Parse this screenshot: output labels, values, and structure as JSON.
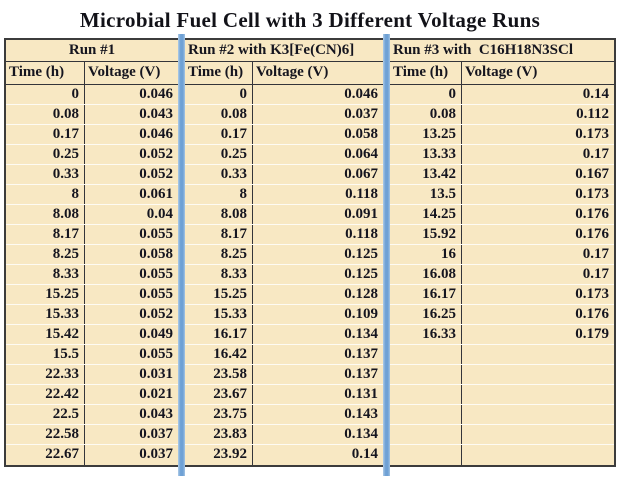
{
  "title": "Microbial Fuel Cell with 3 Different Voltage Runs",
  "colors": {
    "table_background": "#F8E8C3",
    "separator_blue": "#6FA1D5",
    "border_dark": "#3c3c3c",
    "text": "#15151F"
  },
  "chart_data": {
    "type": "table",
    "title": "Microbial Fuel Cell with 3 Different Voltage Runs",
    "tables": [
      {
        "label": "Run #1",
        "columns": [
          "Time (h)",
          "Voltage (V)"
        ],
        "rows": [
          [
            0,
            0.046
          ],
          [
            0.08,
            0.043
          ],
          [
            0.17,
            0.046
          ],
          [
            0.25,
            0.052
          ],
          [
            0.33,
            0.052
          ],
          [
            8,
            0.061
          ],
          [
            8.08,
            0.04
          ],
          [
            8.17,
            0.055
          ],
          [
            8.25,
            0.058
          ],
          [
            8.33,
            0.055
          ],
          [
            15.25,
            0.055
          ],
          [
            15.33,
            0.052
          ],
          [
            15.42,
            0.049
          ],
          [
            15.5,
            0.055
          ],
          [
            22.33,
            0.031
          ],
          [
            22.42,
            0.021
          ],
          [
            22.5,
            0.043
          ],
          [
            22.58,
            0.037
          ],
          [
            22.67,
            0.037
          ]
        ],
        "empty_rows": 0
      },
      {
        "label": "Run #2 with K3[Fe(CN)6]",
        "columns": [
          "Time (h)",
          "Voltage (V)"
        ],
        "rows": [
          [
            0,
            0.046
          ],
          [
            0.08,
            0.037
          ],
          [
            0.17,
            0.058
          ],
          [
            0.25,
            0.064
          ],
          [
            0.33,
            0.067
          ],
          [
            8,
            0.118
          ],
          [
            8.08,
            0.091
          ],
          [
            8.17,
            0.118
          ],
          [
            8.25,
            0.125
          ],
          [
            8.33,
            0.125
          ],
          [
            15.25,
            0.128
          ],
          [
            15.33,
            0.109
          ],
          [
            16.17,
            0.134
          ],
          [
            16.42,
            0.137
          ],
          [
            23.58,
            0.137
          ],
          [
            23.67,
            0.131
          ],
          [
            23.75,
            0.143
          ],
          [
            23.83,
            0.134
          ],
          [
            23.92,
            0.14
          ]
        ],
        "empty_rows": 0
      },
      {
        "label": "Run #3 with  C16H18N3SCl",
        "columns": [
          "Time (h)",
          "Voltage (V)"
        ],
        "rows": [
          [
            0,
            0.14
          ],
          [
            0.08,
            0.112
          ],
          [
            13.25,
            0.173
          ],
          [
            13.33,
            0.17
          ],
          [
            13.42,
            0.167
          ],
          [
            13.5,
            0.173
          ],
          [
            14.25,
            0.176
          ],
          [
            15.92,
            0.176
          ],
          [
            16,
            0.17
          ],
          [
            16.08,
            0.17
          ],
          [
            16.17,
            0.173
          ],
          [
            16.25,
            0.176
          ],
          [
            16.33,
            0.179
          ]
        ],
        "empty_rows": 6
      }
    ]
  }
}
